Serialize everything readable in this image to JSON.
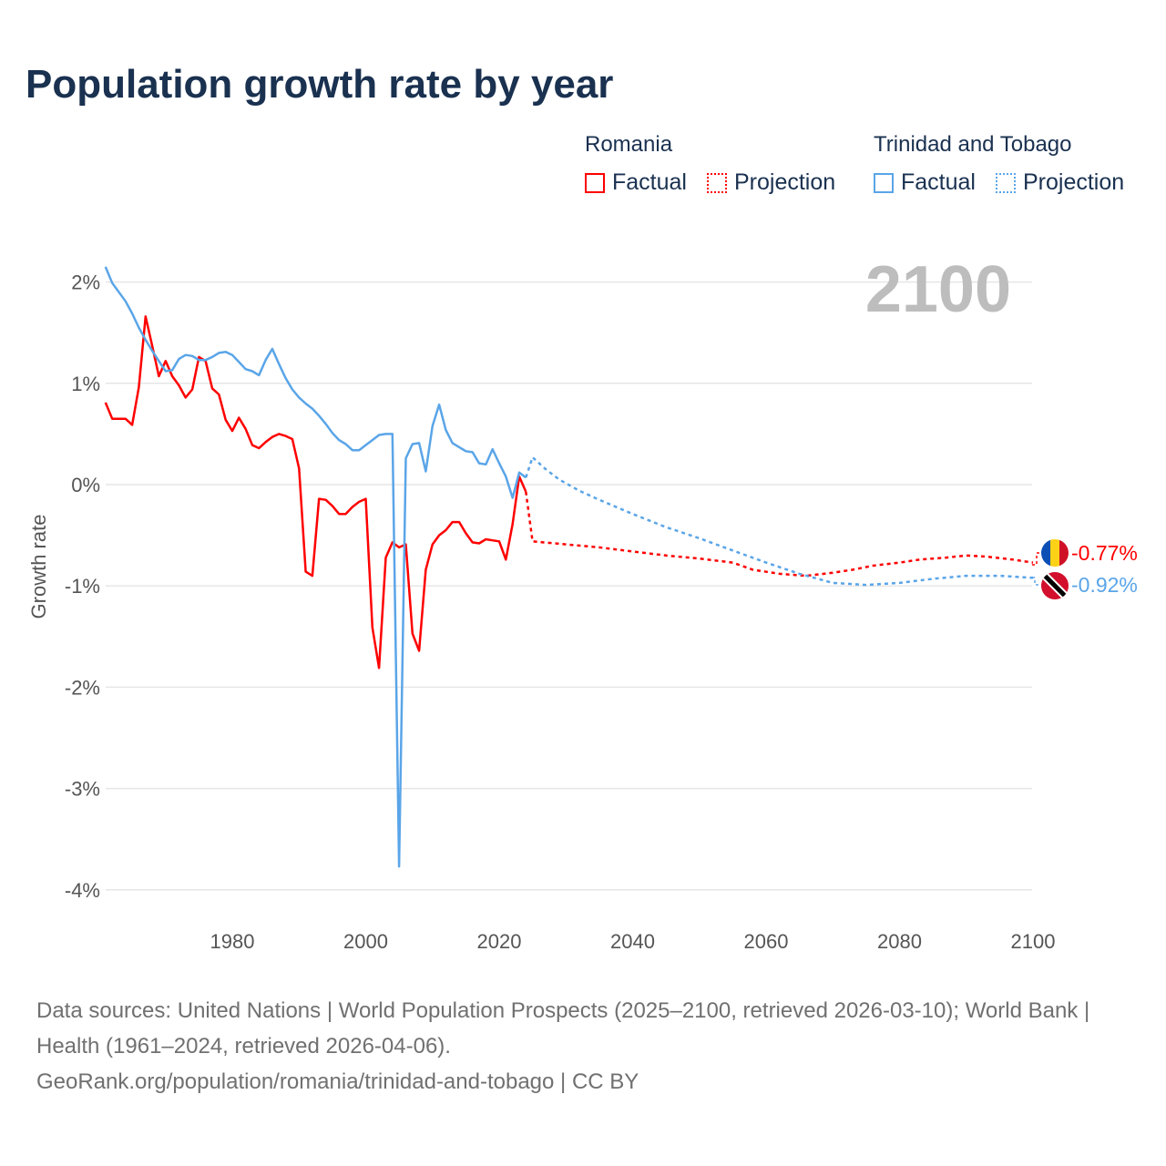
{
  "title": "Population growth rate by year",
  "legend": {
    "groups": [
      {
        "name": "Romania",
        "factual": "Factual",
        "projection": "Projection",
        "color": "#ff0000"
      },
      {
        "name": "Trinidad and Tobago",
        "factual": "Factual",
        "projection": "Projection",
        "color": "#5aa5e8"
      }
    ]
  },
  "big_year": "2100",
  "end_labels": {
    "romania": "-0.77%",
    "trinidad": "-0.92%"
  },
  "source": {
    "line1": "Data sources: United Nations | World Population Prospects (2025–2100, retrieved 2026-03-10); World Bank | Health (1961–2024, retrieved 2026-04-06).",
    "line2": "GeoRank.org/population/romania/trinidad-and-tobago | CC BY"
  },
  "chart_data": {
    "type": "line",
    "title": "Population growth rate by year",
    "xlabel": "",
    "ylabel": "Growth rate",
    "xlim": [
      1961,
      2100
    ],
    "ylim": [
      -4.2,
      2.2
    ],
    "x_ticks": [
      1980,
      2000,
      2020,
      2040,
      2060,
      2080,
      2100
    ],
    "y_ticks": [
      {
        "v": 2,
        "label": "2%"
      },
      {
        "v": 1,
        "label": "1%"
      },
      {
        "v": 0,
        "label": "0%"
      },
      {
        "v": -1,
        "label": "-1%"
      },
      {
        "v": -2,
        "label": "-2%"
      },
      {
        "v": -3,
        "label": "-3%"
      },
      {
        "v": -4,
        "label": "-4%"
      }
    ],
    "grid": true,
    "legend_position": "top-right",
    "series": [
      {
        "name": "Romania",
        "kind": "factual",
        "color": "#ff0000",
        "start_year": 1961,
        "values": [
          0.81,
          0.65,
          0.65,
          0.65,
          0.59,
          0.96,
          1.66,
          1.37,
          1.07,
          1.22,
          1.07,
          0.98,
          0.86,
          0.94,
          1.26,
          1.22,
          0.95,
          0.89,
          0.64,
          0.53,
          0.66,
          0.55,
          0.39,
          0.36,
          0.42,
          0.47,
          0.5,
          0.48,
          0.45,
          0.16,
          -0.86,
          -0.9,
          -0.14,
          -0.15,
          -0.21,
          -0.29,
          -0.29,
          -0.22,
          -0.17,
          -0.14,
          -1.41,
          -1.81,
          -0.72,
          -0.57,
          -0.62,
          -0.59,
          -1.47,
          -1.64,
          -0.84,
          -0.59,
          -0.5,
          -0.45,
          -0.37,
          -0.37,
          -0.48,
          -0.57,
          -0.58,
          -0.54,
          -0.55,
          -0.56,
          -0.74,
          -0.39,
          0.08,
          -0.07
        ]
      },
      {
        "name": "Romania",
        "kind": "projection",
        "color": "#ff0000",
        "points": [
          [
            2024,
            -0.07
          ],
          [
            2025,
            -0.56
          ],
          [
            2030,
            -0.59
          ],
          [
            2035,
            -0.62
          ],
          [
            2040,
            -0.66
          ],
          [
            2045,
            -0.7
          ],
          [
            2050,
            -0.73
          ],
          [
            2055,
            -0.77
          ],
          [
            2058,
            -0.84
          ],
          [
            2062,
            -0.88
          ],
          [
            2066,
            -0.9
          ],
          [
            2070,
            -0.87
          ],
          [
            2073,
            -0.84
          ],
          [
            2076,
            -0.8
          ],
          [
            2080,
            -0.77
          ],
          [
            2083,
            -0.74
          ],
          [
            2087,
            -0.72
          ],
          [
            2090,
            -0.7
          ],
          [
            2093,
            -0.71
          ],
          [
            2097,
            -0.74
          ],
          [
            2100,
            -0.77
          ]
        ]
      },
      {
        "name": "Trinidad and Tobago",
        "kind": "factual",
        "color": "#5aa5e8",
        "start_year": 1961,
        "values": [
          2.15,
          1.99,
          1.9,
          1.81,
          1.69,
          1.55,
          1.43,
          1.32,
          1.22,
          1.12,
          1.13,
          1.24,
          1.28,
          1.27,
          1.23,
          1.23,
          1.26,
          1.3,
          1.31,
          1.28,
          1.21,
          1.14,
          1.12,
          1.08,
          1.23,
          1.34,
          1.19,
          1.05,
          0.94,
          0.86,
          0.8,
          0.75,
          0.68,
          0.6,
          0.51,
          0.44,
          0.4,
          0.34,
          0.34,
          0.39,
          0.44,
          0.49,
          0.5,
          0.5,
          -3.77,
          0.26,
          0.4,
          0.41,
          0.13,
          0.58,
          0.79,
          0.54,
          0.41,
          0.37,
          0.33,
          0.32,
          0.21,
          0.2,
          0.35,
          0.21,
          0.08,
          -0.13,
          0.12,
          0.07
        ]
      },
      {
        "name": "Trinidad and Tobago",
        "kind": "projection",
        "color": "#5aa5e8",
        "points": [
          [
            2024,
            0.07
          ],
          [
            2025,
            0.27
          ],
          [
            2027,
            0.15
          ],
          [
            2029,
            0.05
          ],
          [
            2032,
            -0.06
          ],
          [
            2035,
            -0.15
          ],
          [
            2040,
            -0.29
          ],
          [
            2045,
            -0.42
          ],
          [
            2050,
            -0.53
          ],
          [
            2055,
            -0.65
          ],
          [
            2060,
            -0.77
          ],
          [
            2065,
            -0.88
          ],
          [
            2070,
            -0.97
          ],
          [
            2075,
            -0.99
          ],
          [
            2080,
            -0.97
          ],
          [
            2085,
            -0.93
          ],
          [
            2090,
            -0.9
          ],
          [
            2095,
            -0.9
          ],
          [
            2100,
            -0.92
          ]
        ]
      }
    ]
  }
}
